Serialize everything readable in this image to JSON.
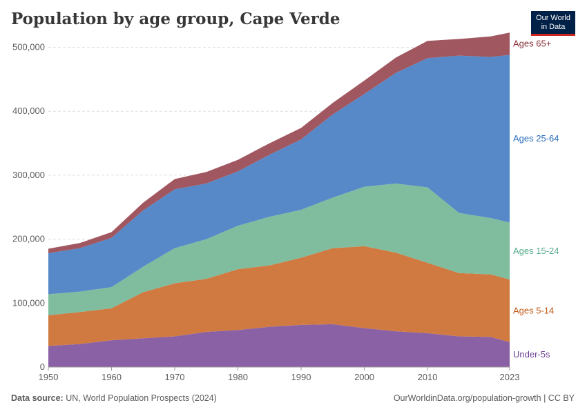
{
  "header": {
    "title": "Population by age group, Cape Verde",
    "logo_line1": "Our World",
    "logo_line2": "in Data"
  },
  "footer": {
    "source_label": "Data source:",
    "source_text": "UN, World Population Prospects (2024)",
    "right_text": "OurWorldinData.org/population-growth | CC BY"
  },
  "chart_data": {
    "type": "area",
    "stacked": true,
    "title": "Population by age group, Cape Verde",
    "xlabel": "",
    "ylabel": "",
    "xlim": [
      1950,
      2023
    ],
    "ylim": [
      0,
      520000
    ],
    "x_ticks": [
      1950,
      1960,
      1970,
      1980,
      1990,
      2000,
      2010,
      2023
    ],
    "y_ticks": [
      0,
      100000,
      200000,
      300000,
      400000,
      500000
    ],
    "y_tick_labels": [
      "0",
      "100,000",
      "200,000",
      "300,000",
      "400,000",
      "500,000"
    ],
    "grid": "horizontal dashed",
    "legend": "right, inline labels",
    "x": [
      1950,
      1955,
      1960,
      1965,
      1970,
      1975,
      1980,
      1985,
      1990,
      1995,
      2000,
      2005,
      2010,
      2015,
      2020,
      2023
    ],
    "series": [
      {
        "name": "Under-5s",
        "color": "#8a61a5",
        "values": [
          33000,
          36000,
          42000,
          45000,
          48000,
          55000,
          58000,
          63000,
          66000,
          67000,
          61000,
          56000,
          53000,
          48000,
          47000,
          39000
        ]
      },
      {
        "name": "Ages 5-14",
        "color": "#d07a42",
        "values": [
          48000,
          50000,
          50000,
          72000,
          83000,
          83000,
          95000,
          96000,
          105000,
          119000,
          128000,
          123000,
          110000,
          99000,
          98000,
          98000
        ]
      },
      {
        "name": "Ages 15-24",
        "color": "#7fbd9e",
        "values": [
          33000,
          32000,
          33000,
          40000,
          55000,
          62000,
          68000,
          76000,
          75000,
          79000,
          93000,
          108000,
          118000,
          94000,
          88000,
          89000
        ]
      },
      {
        "name": "Ages 25-64",
        "color": "#5789c9",
        "values": [
          64000,
          68000,
          77000,
          88000,
          92000,
          87000,
          85000,
          97000,
          110000,
          130000,
          145000,
          173000,
          202000,
          246000,
          252000,
          262000
        ]
      },
      {
        "name": "Ages 65+",
        "color": "#a15760",
        "values": [
          7000,
          8000,
          9000,
          12000,
          16000,
          18000,
          18000,
          18000,
          18000,
          18000,
          21000,
          24000,
          27000,
          26000,
          32000,
          35000
        ]
      }
    ]
  }
}
